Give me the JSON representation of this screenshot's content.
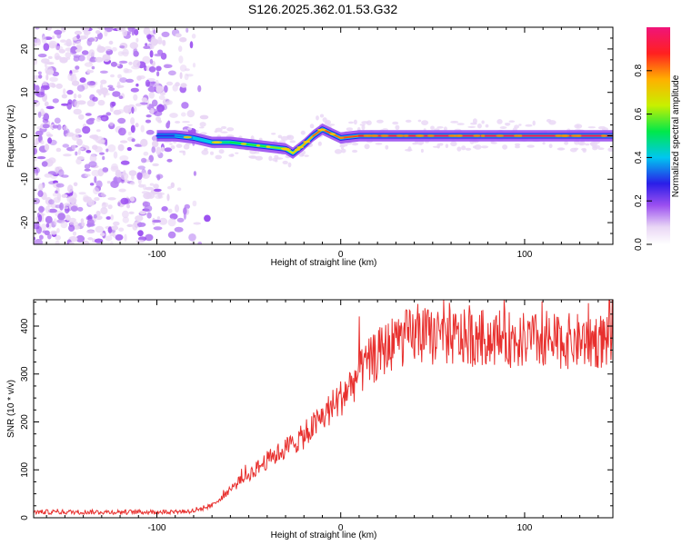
{
  "title": "S126.2025.362.01.53.G32",
  "chart_data": [
    {
      "type": "heatmap",
      "name": "spectrogram",
      "xlabel": "Height of straight line (km)",
      "ylabel": "Frequency (Hz)",
      "xlim": [
        -167,
        148
      ],
      "ylim": [
        -25,
        25
      ],
      "xticks": [
        -100,
        0,
        100
      ],
      "xtick_labels": [
        "-100",
        "0",
        "100"
      ],
      "yticks": [
        -20,
        -10,
        0,
        10,
        20
      ],
      "ytick_labels": [
        "-20",
        "-10",
        "0",
        "10",
        "20"
      ],
      "ridge": {
        "x": [
          -100,
          -90,
          -80,
          -70,
          -60,
          -50,
          -40,
          -30,
          -26,
          -20,
          -15,
          -10,
          -5,
          0,
          10,
          20,
          40,
          60,
          80,
          100,
          120,
          148
        ],
        "y": [
          0,
          0,
          -0.5,
          -1.5,
          -1.5,
          -2,
          -2.5,
          -3,
          -4,
          -2,
          0,
          1.5,
          0.5,
          -0.5,
          0,
          0,
          0,
          0,
          0,
          0,
          0,
          0
        ],
        "amplitude": [
          0.25,
          0.4,
          0.4,
          0.5,
          0.55,
          0.55,
          0.6,
          0.65,
          0.7,
          0.75,
          0.8,
          0.85,
          0.85,
          0.8,
          0.9,
          0.92,
          0.95,
          0.95,
          0.95,
          0.95,
          0.95,
          0.95
        ]
      },
      "noise_region_x": [
        -167,
        -95
      ],
      "colorbar": {
        "label": "Normalized spectral amplitude",
        "range": [
          0,
          1
        ],
        "ticks": [
          0,
          0.2,
          0.4,
          0.6,
          0.8
        ],
        "tick_labels": [
          "0.0",
          "0.2",
          "0.4",
          "0.6",
          "0.8"
        ],
        "colors": [
          "#ffffff",
          "#e9d6f5",
          "#9b4ff0",
          "#2a1ee8",
          "#00c7f0",
          "#00e84a",
          "#c8f000",
          "#ffb000",
          "#ff2020",
          "#f0147a"
        ]
      }
    },
    {
      "type": "line",
      "name": "snr",
      "xlabel": "Height of straight line (km)",
      "ylabel": "SNR (10 * v/v)",
      "xlim": [
        -167,
        148
      ],
      "ylim": [
        0,
        455
      ],
      "xticks": [
        -100,
        0,
        100
      ],
      "xtick_labels": [
        "-100",
        "0",
        "100"
      ],
      "yticks": [
        0,
        100,
        200,
        300,
        400
      ],
      "ytick_labels": [
        "0",
        "100",
        "200",
        "300",
        "400"
      ],
      "color": "#e8302e",
      "trend": {
        "x": [
          -167,
          -100,
          -80,
          -70,
          -60,
          -50,
          -40,
          -30,
          -20,
          -10,
          0,
          10,
          20,
          30,
          40,
          60,
          80,
          100,
          120,
          148
        ],
        "y": [
          12,
          12,
          14,
          25,
          60,
          90,
          120,
          145,
          170,
          210,
          250,
          300,
          340,
          370,
          380,
          375,
          375,
          370,
          368,
          370
        ]
      }
    }
  ]
}
